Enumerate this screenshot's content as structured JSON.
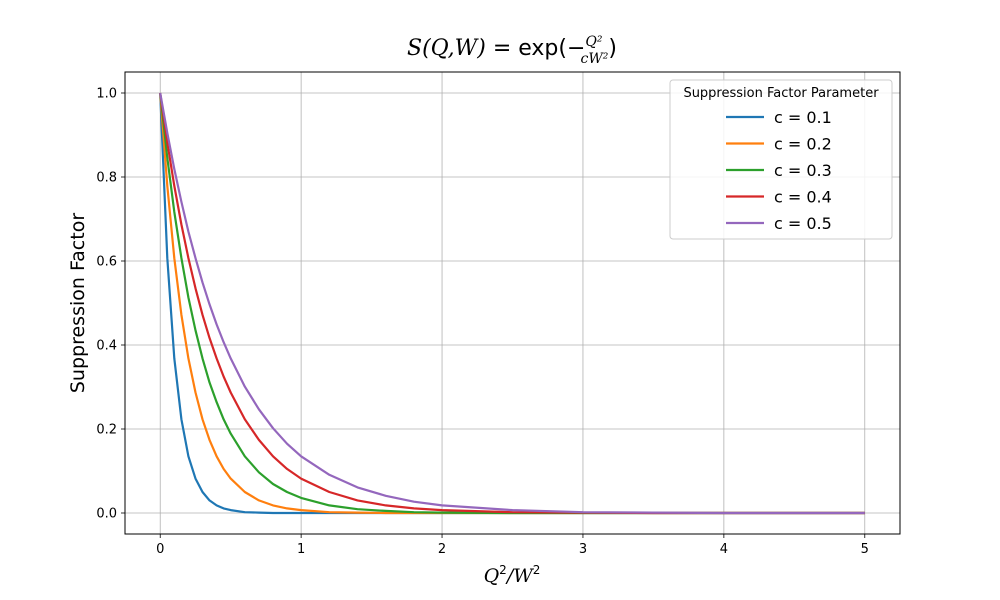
{
  "chart_data": {
    "type": "line",
    "title": {
      "prefix": "S(Q,W)",
      "eq": " = exp",
      "paren_left": "(",
      "minus": "−",
      "numerator": "Q²",
      "denominator": "cW²",
      "paren_right": ")"
    },
    "xlabel": {
      "main": "Q",
      "sup": "2",
      "slash": "/W",
      "sup2": "2"
    },
    "ylabel": "Suppression Factor",
    "xlim": [
      -0.25,
      5.25
    ],
    "ylim": [
      -0.05,
      1.05
    ],
    "xticks": [
      0,
      1,
      2,
      3,
      4,
      5
    ],
    "xtick_labels": [
      "0",
      "1",
      "2",
      "3",
      "4",
      "5"
    ],
    "yticks": [
      0.0,
      0.2,
      0.4,
      0.6,
      0.8,
      1.0
    ],
    "ytick_labels": [
      "0.0",
      "0.2",
      "0.4",
      "0.6",
      "0.8",
      "1.0"
    ],
    "grid": true,
    "legend": {
      "title": "Suppression Factor Parameter",
      "position": "top-right"
    },
    "x": [
      0,
      0.05,
      0.1,
      0.15,
      0.2,
      0.25,
      0.3,
      0.35,
      0.4,
      0.45,
      0.5,
      0.6,
      0.7,
      0.8,
      0.9,
      1.0,
      1.2,
      1.4,
      1.6,
      1.8,
      2.0,
      2.5,
      3.0,
      3.5,
      4.0,
      4.5,
      5.0
    ],
    "series": [
      {
        "name": "c = 0.1",
        "color": "#1f77b4",
        "values": [
          1.0,
          0.607,
          0.368,
          0.223,
          0.135,
          0.082,
          0.05,
          0.03,
          0.018,
          0.011,
          0.007,
          0.002,
          0.001,
          0.0,
          0.0,
          0.0,
          0.0,
          0.0,
          0.0,
          0.0,
          0.0,
          0.0,
          0.0,
          0.0,
          0.0,
          0.0,
          0.0
        ]
      },
      {
        "name": "c = 0.2",
        "color": "#ff7f0e",
        "values": [
          1.0,
          0.779,
          0.607,
          0.472,
          0.368,
          0.287,
          0.223,
          0.174,
          0.135,
          0.105,
          0.082,
          0.05,
          0.03,
          0.018,
          0.011,
          0.007,
          0.002,
          0.001,
          0.0,
          0.0,
          0.0,
          0.0,
          0.0,
          0.0,
          0.0,
          0.0,
          0.0
        ]
      },
      {
        "name": "c = 0.3",
        "color": "#2ca02c",
        "values": [
          1.0,
          0.846,
          0.717,
          0.607,
          0.513,
          0.435,
          0.368,
          0.311,
          0.264,
          0.223,
          0.189,
          0.135,
          0.097,
          0.069,
          0.05,
          0.036,
          0.018,
          0.009,
          0.005,
          0.002,
          0.001,
          0.0,
          0.0,
          0.0,
          0.0,
          0.0,
          0.0
        ]
      },
      {
        "name": "c = 0.4",
        "color": "#d62728",
        "values": [
          1.0,
          0.882,
          0.779,
          0.687,
          0.607,
          0.535,
          0.472,
          0.417,
          0.368,
          0.325,
          0.287,
          0.223,
          0.174,
          0.135,
          0.105,
          0.082,
          0.05,
          0.03,
          0.018,
          0.011,
          0.007,
          0.002,
          0.001,
          0.0,
          0.0,
          0.0,
          0.0
        ]
      },
      {
        "name": "c = 0.5",
        "color": "#9467bd",
        "values": [
          1.0,
          0.905,
          0.819,
          0.741,
          0.67,
          0.607,
          0.549,
          0.497,
          0.449,
          0.407,
          0.368,
          0.301,
          0.247,
          0.202,
          0.165,
          0.135,
          0.091,
          0.061,
          0.041,
          0.027,
          0.018,
          0.007,
          0.002,
          0.001,
          0.0,
          0.0,
          0.0
        ]
      }
    ]
  }
}
